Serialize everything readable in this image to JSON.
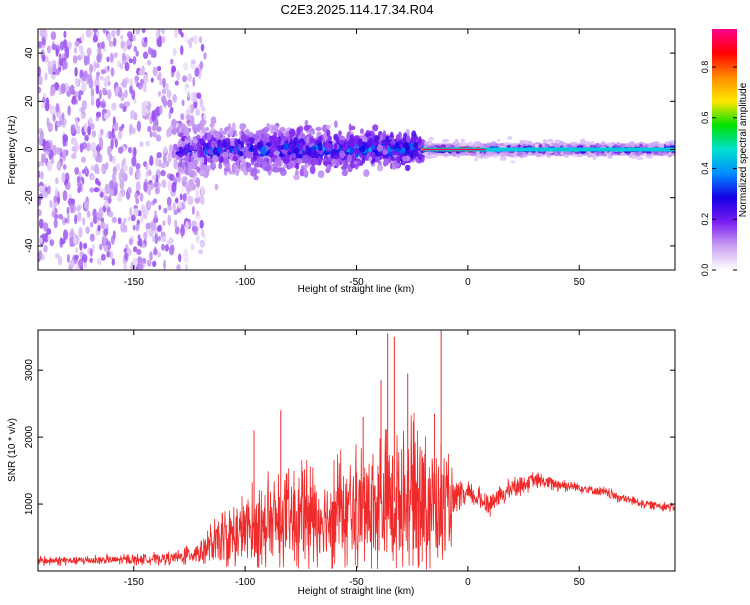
{
  "title": "C2E3.2025.114.17.34.R04",
  "chart_data": [
    {
      "type": "heatmap",
      "xlabel": "Height of straight line (km)",
      "ylabel": "Frequency (Hz)",
      "xlim": [
        -193,
        93
      ],
      "ylim": [
        -50,
        50
      ],
      "x_ticks": [
        -150,
        -100,
        -50,
        0,
        50
      ],
      "y_ticks": [
        -40,
        -20,
        0,
        20,
        40
      ],
      "colorbar": {
        "label": "Normalized spectral amplitude",
        "range": [
          0,
          0.95
        ],
        "ticks": [
          0.0,
          0.2,
          0.4,
          0.6,
          0.8
        ],
        "colors": [
          "#ffffff",
          "#c9a0f2",
          "#7a1cf0",
          "#1400e6",
          "#008cff",
          "#00e0d0",
          "#00e000",
          "#ffe600",
          "#ff8c00",
          "#ff0000",
          "#ff0090"
        ]
      },
      "regions": [
        {
          "x": [
            -193,
            -118
          ],
          "spread_hz": 50,
          "amplitude": 0.05,
          "pattern": "scattered noise"
        },
        {
          "x": [
            -130,
            -20
          ],
          "spread_hz": 12,
          "amplitude": 0.2,
          "pattern": "broadband blob"
        },
        {
          "x": [
            -20,
            93
          ],
          "spread_hz": 3,
          "amplitude": 0.35,
          "pattern": "narrow carrier line"
        },
        {
          "x": [
            -20,
            5
          ],
          "spread_hz": 1,
          "amplitude": 0.9,
          "pattern": "peak line"
        }
      ],
      "grid": false
    },
    {
      "type": "line",
      "xlabel": "Height of straight line (km)",
      "ylabel": "SNR (10 * v/v)",
      "xlim": [
        -193,
        93
      ],
      "ylim": [
        0,
        3600
      ],
      "x_ticks": [
        -150,
        -100,
        -50,
        0,
        50
      ],
      "y_ticks": [
        1000,
        2000,
        3000
      ],
      "color": "#ee2a2a",
      "envelope": {
        "x": [
          -193,
          -170,
          -150,
          -130,
          -120,
          -110,
          -100,
          -90,
          -80,
          -70,
          -60,
          -50,
          -40,
          -30,
          -20,
          -15,
          -10,
          -5,
          0,
          10,
          20,
          30,
          40,
          50,
          60,
          70,
          80,
          93
        ],
        "mean": [
          150,
          160,
          170,
          200,
          300,
          450,
          600,
          700,
          750,
          800,
          850,
          900,
          1000,
          1050,
          1100,
          1000,
          900,
          1050,
          1150,
          1000,
          1250,
          1350,
          1300,
          1250,
          1180,
          1080,
          1000,
          950
        ],
        "amp": [
          80,
          80,
          90,
          120,
          250,
          500,
          700,
          800,
          850,
          900,
          950,
          1000,
          1200,
          1300,
          1300,
          1200,
          1000,
          300,
          200,
          200,
          180,
          150,
          120,
          100,
          100,
          90,
          80,
          80
        ]
      },
      "spikes": [
        {
          "x": -36,
          "y": 3550
        },
        {
          "x": -33,
          "y": 3500
        },
        {
          "x": -12,
          "y": 3700
        },
        {
          "x": -27,
          "y": 2950
        },
        {
          "x": -39,
          "y": 2850
        },
        {
          "x": -84,
          "y": 2400
        },
        {
          "x": -47,
          "y": 2300
        },
        {
          "x": -96,
          "y": 2100
        },
        {
          "x": -15,
          "y": 2350
        }
      ],
      "grid": false
    }
  ]
}
